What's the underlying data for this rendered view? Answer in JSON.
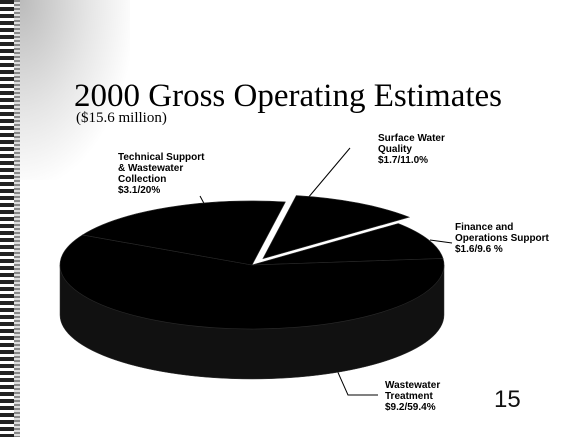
{
  "chart_data": {
    "type": "pie",
    "title": "2000 Gross Operating Estimates",
    "subtitle": "($15.6 million)",
    "categories": [
      "Surface Water\nQuality",
      "Finance and\nOperations Support",
      "Wastewater\nTreatment",
      "Technical Support\n& Wastewater\nCollection"
    ],
    "values": [
      11.0,
      9.6,
      59.4,
      20
    ],
    "value_labels": [
      "$1.7/11.0%",
      "$1.6/9.6 %",
      "$9.2/59.4%",
      "$3.1/20%"
    ],
    "color": "#000000"
  },
  "page_number": "15"
}
